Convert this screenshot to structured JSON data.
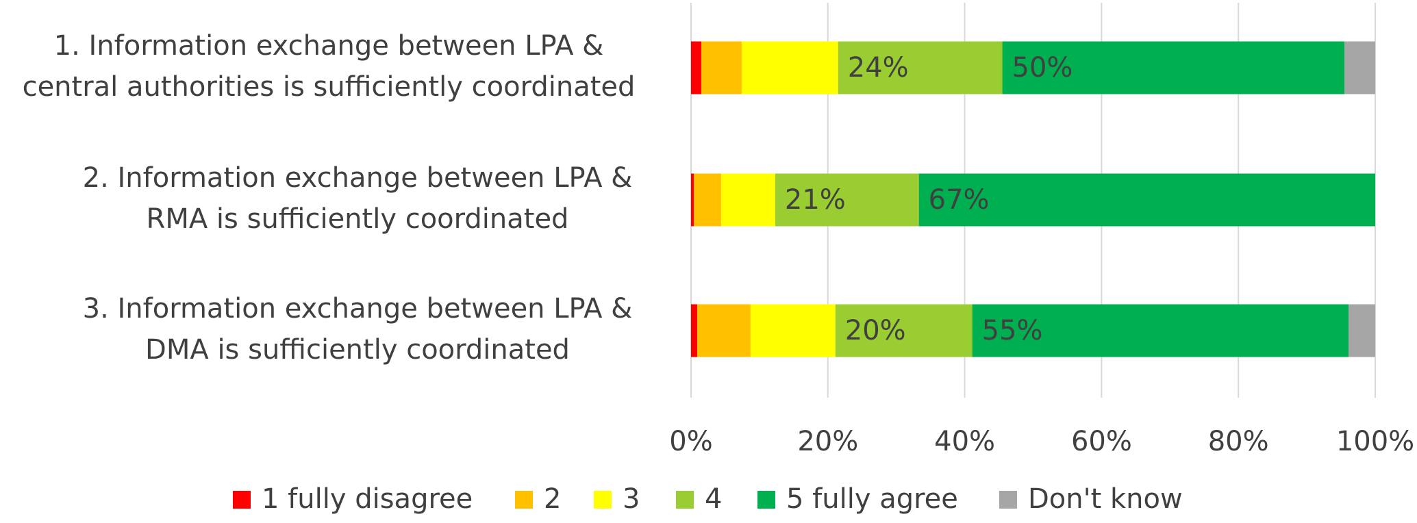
{
  "chart_data": {
    "type": "stacked-barh",
    "categories": [
      [
        "1. Information exchange between LPA &",
        "central authorities is sufficiently coordinated"
      ],
      [
        "2. Information exchange between LPA &",
        "RMA is sufficiently coordinated"
      ],
      [
        "3. Information exchange between LPA &",
        "DMA is sufficiently coordinated"
      ]
    ],
    "series": [
      {
        "name": "1 fully disagree",
        "color": "#ff0000",
        "values": [
          1.5,
          0.4,
          0.9
        ]
      },
      {
        "name": "2",
        "color": "#ffc000",
        "values": [
          5.9,
          4,
          7.8
        ]
      },
      {
        "name": "3",
        "color": "#ffff00",
        "values": [
          14.1,
          7.9,
          12.4
        ]
      },
      {
        "name": "4",
        "color": "#9acd32",
        "values": [
          24,
          21,
          20
        ],
        "value_labels": [
          "24%",
          "21%",
          "20%"
        ]
      },
      {
        "name": "5 fully agree",
        "color": "#00b050",
        "values": [
          50,
          66.7,
          55
        ],
        "value_labels": [
          "50%",
          "67%",
          "55%"
        ]
      },
      {
        "name": "Don't know",
        "color": "#a6a6a6",
        "values": [
          4.5,
          0,
          3.9
        ]
      }
    ],
    "xlim": [
      0,
      100
    ],
    "xticks": [
      {
        "value": 0,
        "label": "0%"
      },
      {
        "value": 20,
        "label": "20%"
      },
      {
        "value": 40,
        "label": "40%"
      },
      {
        "value": 60,
        "label": "60%"
      },
      {
        "value": 80,
        "label": "80%"
      },
      {
        "value": 100,
        "label": "100%"
      }
    ],
    "grid": true,
    "legend": "bottom"
  }
}
